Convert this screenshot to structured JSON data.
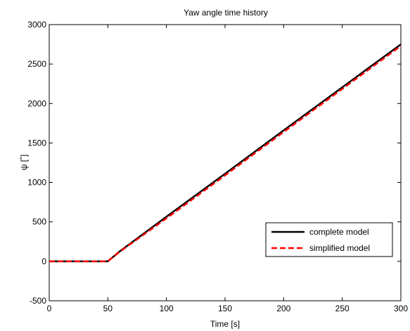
{
  "chart_data": {
    "type": "line",
    "title": "Yaw angle time history",
    "xlabel": "Time [s]",
    "ylabel": "ψ [˚]",
    "xlim": [
      0,
      300
    ],
    "ylim": [
      -500,
      3000
    ],
    "xticks": [
      0,
      50,
      100,
      150,
      200,
      250,
      300
    ],
    "yticks": [
      -500,
      0,
      500,
      1000,
      1500,
      2000,
      2500,
      3000
    ],
    "grid": false,
    "legend_position": "bottom-right",
    "series": [
      {
        "name": "complete model",
        "color": "#000000",
        "style": "solid",
        "x": [
          0,
          50,
          60,
          100,
          150,
          200,
          250,
          300
        ],
        "y": [
          0,
          0,
          125,
          565,
          1110,
          1660,
          2205,
          2750
        ]
      },
      {
        "name": "simplified model",
        "color": "#ff0000",
        "style": "dashed",
        "x": [
          0,
          50,
          60,
          100,
          150,
          200,
          250,
          300
        ],
        "y": [
          0,
          0,
          120,
          545,
          1090,
          1640,
          2185,
          2730
        ]
      }
    ]
  }
}
